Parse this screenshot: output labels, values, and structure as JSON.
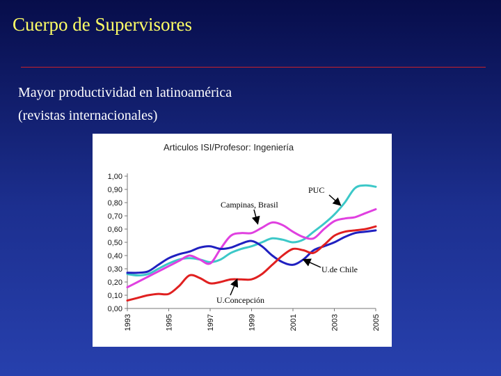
{
  "slide": {
    "title": "Cuerpo de Supervisores",
    "subtitle_line1": "Mayor productividad en latinoamérica",
    "subtitle_line2": "(revistas internacionales)"
  },
  "chart_data": {
    "type": "line",
    "title": "Articulos ISI/Profesor: Ingeniería",
    "xlabel": "",
    "ylabel": "",
    "xlim": [
      1993,
      2005
    ],
    "ylim": [
      0,
      1.0
    ],
    "x_ticks": [
      "1993",
      "1995",
      "1997",
      "1999",
      "2001",
      "2003",
      "2005"
    ],
    "y_ticks": [
      "0,00",
      "0,10",
      "0,20",
      "0,30",
      "0,40",
      "0,50",
      "0,60",
      "0,70",
      "0,80",
      "0,90",
      "1,00"
    ],
    "grid": false,
    "series": [
      {
        "name": "PUC",
        "color": "#3cc8c8",
        "points": [
          [
            1993,
            0.26
          ],
          [
            1993.5,
            0.25
          ],
          [
            1994,
            0.26
          ],
          [
            1994.5,
            0.3
          ],
          [
            1995,
            0.34
          ],
          [
            1995.5,
            0.37
          ],
          [
            1996,
            0.38
          ],
          [
            1996.5,
            0.37
          ],
          [
            1997,
            0.35
          ],
          [
            1997.5,
            0.37
          ],
          [
            1998,
            0.42
          ],
          [
            1998.5,
            0.45
          ],
          [
            1999,
            0.47
          ],
          [
            1999.5,
            0.5
          ],
          [
            2000,
            0.53
          ],
          [
            2000.5,
            0.52
          ],
          [
            2001,
            0.5
          ],
          [
            2001.5,
            0.52
          ],
          [
            2002,
            0.58
          ],
          [
            2002.5,
            0.64
          ],
          [
            2003,
            0.71
          ],
          [
            2003.5,
            0.8
          ],
          [
            2004,
            0.91
          ],
          [
            2004.5,
            0.93
          ],
          [
            2005,
            0.92
          ]
        ]
      },
      {
        "name": "Campinas, Brasil",
        "color": "#e040e0",
        "points": [
          [
            1993,
            0.16
          ],
          [
            1993.5,
            0.2
          ],
          [
            1994,
            0.24
          ],
          [
            1994.5,
            0.28
          ],
          [
            1995,
            0.32
          ],
          [
            1995.5,
            0.36
          ],
          [
            1996,
            0.4
          ],
          [
            1996.5,
            0.37
          ],
          [
            1997,
            0.34
          ],
          [
            1997.5,
            0.45
          ],
          [
            1998,
            0.55
          ],
          [
            1998.5,
            0.57
          ],
          [
            1999,
            0.57
          ],
          [
            1999.5,
            0.61
          ],
          [
            2000,
            0.65
          ],
          [
            2000.5,
            0.63
          ],
          [
            2001,
            0.58
          ],
          [
            2001.5,
            0.54
          ],
          [
            2002,
            0.53
          ],
          [
            2002.5,
            0.6
          ],
          [
            2003,
            0.66
          ],
          [
            2003.5,
            0.68
          ],
          [
            2004,
            0.69
          ],
          [
            2004.5,
            0.72
          ],
          [
            2005,
            0.75
          ]
        ]
      },
      {
        "name": "U.de Chile",
        "color": "#2020c0",
        "points": [
          [
            1993,
            0.27
          ],
          [
            1993.5,
            0.27
          ],
          [
            1994,
            0.28
          ],
          [
            1994.5,
            0.33
          ],
          [
            1995,
            0.38
          ],
          [
            1995.5,
            0.41
          ],
          [
            1996,
            0.43
          ],
          [
            1996.5,
            0.46
          ],
          [
            1997,
            0.47
          ],
          [
            1997.5,
            0.45
          ],
          [
            1998,
            0.46
          ],
          [
            1998.5,
            0.49
          ],
          [
            1999,
            0.51
          ],
          [
            1999.5,
            0.47
          ],
          [
            2000,
            0.4
          ],
          [
            2000.5,
            0.35
          ],
          [
            2001,
            0.33
          ],
          [
            2001.5,
            0.37
          ],
          [
            2002,
            0.44
          ],
          [
            2002.5,
            0.47
          ],
          [
            2003,
            0.5
          ],
          [
            2003.5,
            0.54
          ],
          [
            2004,
            0.57
          ],
          [
            2004.5,
            0.58
          ],
          [
            2005,
            0.59
          ]
        ]
      },
      {
        "name": "U.Concepción",
        "color": "#e02020",
        "points": [
          [
            1993,
            0.06
          ],
          [
            1993.5,
            0.08
          ],
          [
            1994,
            0.1
          ],
          [
            1994.5,
            0.11
          ],
          [
            1995,
            0.11
          ],
          [
            1995.5,
            0.17
          ],
          [
            1996,
            0.25
          ],
          [
            1996.5,
            0.23
          ],
          [
            1997,
            0.19
          ],
          [
            1997.5,
            0.2
          ],
          [
            1998,
            0.22
          ],
          [
            1998.5,
            0.22
          ],
          [
            1999,
            0.22
          ],
          [
            1999.5,
            0.26
          ],
          [
            2000,
            0.33
          ],
          [
            2000.5,
            0.4
          ],
          [
            2001,
            0.45
          ],
          [
            2001.5,
            0.44
          ],
          [
            2002,
            0.42
          ],
          [
            2002.5,
            0.48
          ],
          [
            2003,
            0.55
          ],
          [
            2003.5,
            0.58
          ],
          [
            2004,
            0.59
          ],
          [
            2004.5,
            0.6
          ],
          [
            2005,
            0.62
          ]
        ]
      }
    ],
    "annotations": [
      {
        "label": "PUC",
        "series": "PUC",
        "arrow_to": [
          2003.3,
          0.78
        ]
      },
      {
        "label": "Campinas, Brasil",
        "series": "Campinas, Brasil",
        "arrow_to": [
          1999.3,
          0.64
        ]
      },
      {
        "label": "U.de Chile",
        "series": "U.de Chile",
        "arrow_to": [
          2001.5,
          0.37
        ]
      },
      {
        "label": "U.Concepción",
        "series": "U.Concepción",
        "arrow_to": [
          1998.3,
          0.22
        ]
      }
    ]
  }
}
